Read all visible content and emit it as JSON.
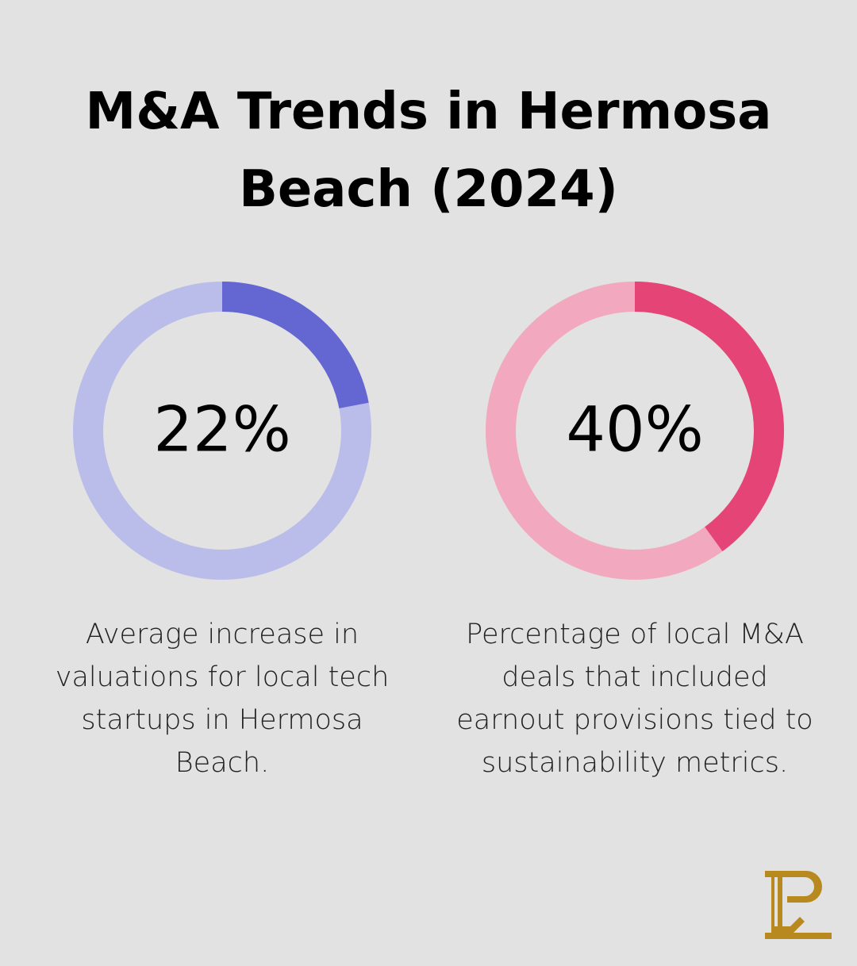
{
  "title": [
    "M&A Trends in Hermosa",
    "Beach (2024)"
  ],
  "chart_data": [
    {
      "type": "donut",
      "values": [
        22
      ],
      "value_labels": [
        "22%"
      ],
      "ylim": [
        0,
        100
      ],
      "color": "#6467d2",
      "track_color": "#babde9",
      "description": [
        "Average increase in",
        "valuations for local tech",
        "startups in Hermosa",
        "Beach."
      ]
    },
    {
      "type": "donut",
      "values": [
        40
      ],
      "value_labels": [
        "40%"
      ],
      "ylim": [
        0,
        100
      ],
      "color": "#e44576",
      "track_color": "#f2a8bf",
      "description": [
        "Percentage of local M&A",
        "deals that included",
        "earnout provisions tied to",
        "sustainability metrics."
      ]
    }
  ]
}
